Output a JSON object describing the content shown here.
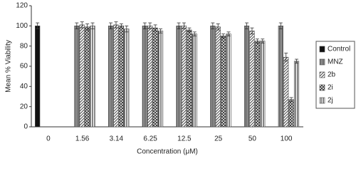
{
  "chart_data": {
    "type": "bar",
    "x_label": "Concentration (μM)",
    "y_label": "Mean % Viability",
    "categories": [
      "0",
      "1.56",
      "3.14",
      "6.25",
      "12.5",
      "25",
      "50",
      "100"
    ],
    "series": [
      {
        "name": "Control",
        "color": "#111111",
        "pattern": "solid",
        "values": [
          100,
          null,
          null,
          null,
          null,
          null,
          null,
          null
        ],
        "errors": [
          3,
          null,
          null,
          null,
          null,
          null,
          null,
          null
        ]
      },
      {
        "name": "MNZ",
        "color": "#555555",
        "pattern": "vertical-lines",
        "values": [
          null,
          100,
          100,
          100,
          100,
          100,
          100,
          100
        ],
        "errors": [
          null,
          3,
          3,
          3,
          3,
          3,
          3,
          3
        ]
      },
      {
        "name": "2b",
        "color": "#444444",
        "pattern": "diagonal",
        "values": [
          null,
          101,
          101,
          100,
          100,
          99,
          95,
          69
        ],
        "errors": [
          null,
          3,
          3,
          3,
          3,
          3,
          3,
          4
        ]
      },
      {
        "name": "2i",
        "color": "#333333",
        "pattern": "checker",
        "values": [
          null,
          99,
          100,
          98,
          96,
          90,
          85,
          27
        ],
        "errors": [
          null,
          3,
          2,
          3,
          2,
          2,
          2,
          2
        ]
      },
      {
        "name": "2j",
        "color": "#444444",
        "pattern": "stripes",
        "values": [
          null,
          100,
          97,
          95,
          92,
          92,
          85,
          65
        ],
        "errors": [
          null,
          3,
          3,
          2,
          2,
          2,
          2,
          2
        ]
      }
    ],
    "ylim": [
      0,
      120
    ],
    "yticks": [
      0,
      20,
      40,
      60,
      80,
      100,
      120
    ],
    "legend": "right"
  }
}
